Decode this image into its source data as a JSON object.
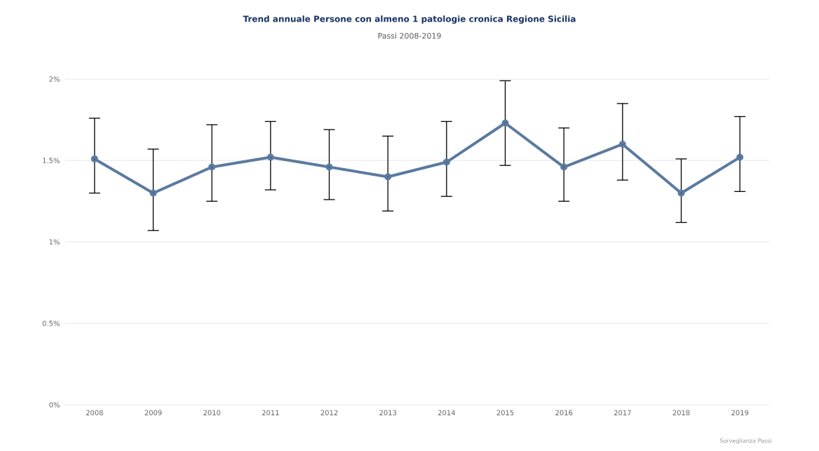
{
  "chart_data": {
    "type": "line",
    "title": "Trend annuale Persone con almeno 1 patologie cronica Regione Sicilia",
    "subtitle": "Passi 2008-2019",
    "categories": [
      "2008",
      "2009",
      "2010",
      "2011",
      "2012",
      "2013",
      "2014",
      "2015",
      "2016",
      "2017",
      "2018",
      "2019"
    ],
    "series": [
      {
        "color": "#5b7aa0",
        "values": [
          1.51,
          1.3,
          1.46,
          1.52,
          1.46,
          1.4,
          1.49,
          1.73,
          1.46,
          1.6,
          1.3,
          1.52
        ],
        "errors": [
          [
            1.3,
            1.76
          ],
          [
            1.07,
            1.57
          ],
          [
            1.25,
            1.72
          ],
          [
            1.32,
            1.74
          ],
          [
            1.26,
            1.69
          ],
          [
            1.19,
            1.65
          ],
          [
            1.28,
            1.74
          ],
          [
            1.47,
            1.99
          ],
          [
            1.25,
            1.7
          ],
          [
            1.38,
            1.85
          ],
          [
            1.12,
            1.51
          ],
          [
            1.31,
            1.77
          ]
        ]
      }
    ],
    "ylim": [
      0,
      2
    ],
    "yticks": [
      {
        "value": 0,
        "label": "0%"
      },
      {
        "value": 0.5,
        "label": "0.5%"
      },
      {
        "value": 1,
        "label": "1%"
      },
      {
        "value": 1.5,
        "label": "1.5%"
      },
      {
        "value": 2,
        "label": "2%"
      }
    ],
    "grid": "y",
    "marker": "circle",
    "line_style": "solid",
    "annotations": [
      "Sorveglianza Passi"
    ]
  }
}
